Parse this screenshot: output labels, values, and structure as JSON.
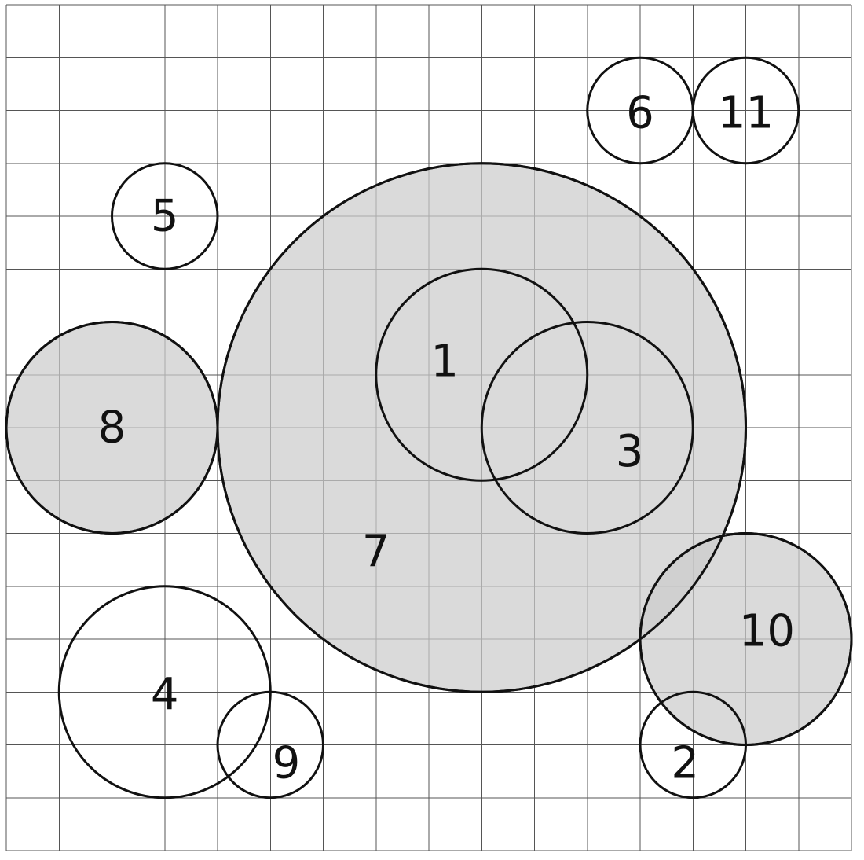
{
  "diagram": {
    "grid": {
      "columns": 16,
      "rows": 16,
      "line_color": "#555555"
    },
    "colors": {
      "shaded_fill": "#cccccc",
      "unshaded_fill": "#ffffff",
      "outline": "#111111"
    },
    "circles": [
      {
        "label": "7",
        "cx": 9,
        "cy": 8,
        "r": 5,
        "shaded": true,
        "label_x": 7,
        "label_y": 10.35
      },
      {
        "label": "8",
        "cx": 2,
        "cy": 8,
        "r": 2,
        "shaded": true,
        "label_x": 2,
        "label_y": 8
      },
      {
        "label": "10",
        "cx": 14,
        "cy": 12,
        "r": 2,
        "shaded": true,
        "label_x": 14.4,
        "label_y": 11.85
      },
      {
        "label": "1",
        "cx": 9,
        "cy": 7,
        "r": 2,
        "shaded": false,
        "label_x": 8.3,
        "label_y": 6.75
      },
      {
        "label": "3",
        "cx": 11,
        "cy": 8,
        "r": 2,
        "shaded": false,
        "label_x": 11.8,
        "label_y": 8.45
      },
      {
        "label": "5",
        "cx": 3,
        "cy": 4,
        "r": 1,
        "shaded": false,
        "label_x": 3,
        "label_y": 4
      },
      {
        "label": "6",
        "cx": 12,
        "cy": 2,
        "r": 1,
        "shaded": false,
        "label_x": 12,
        "label_y": 2.05
      },
      {
        "label": "11",
        "cx": 14,
        "cy": 2,
        "r": 1,
        "shaded": false,
        "label_x": 14,
        "label_y": 2.05
      },
      {
        "label": "4",
        "cx": 3,
        "cy": 13,
        "r": 2,
        "shaded": false,
        "label_x": 3,
        "label_y": 13.05
      },
      {
        "label": "9",
        "cx": 5,
        "cy": 14,
        "r": 1,
        "shaded": false,
        "label_x": 5.3,
        "label_y": 14.35
      },
      {
        "label": "2",
        "cx": 13,
        "cy": 14,
        "r": 1,
        "shaded": false,
        "label_x": 12.85,
        "label_y": 14.35
      }
    ]
  }
}
